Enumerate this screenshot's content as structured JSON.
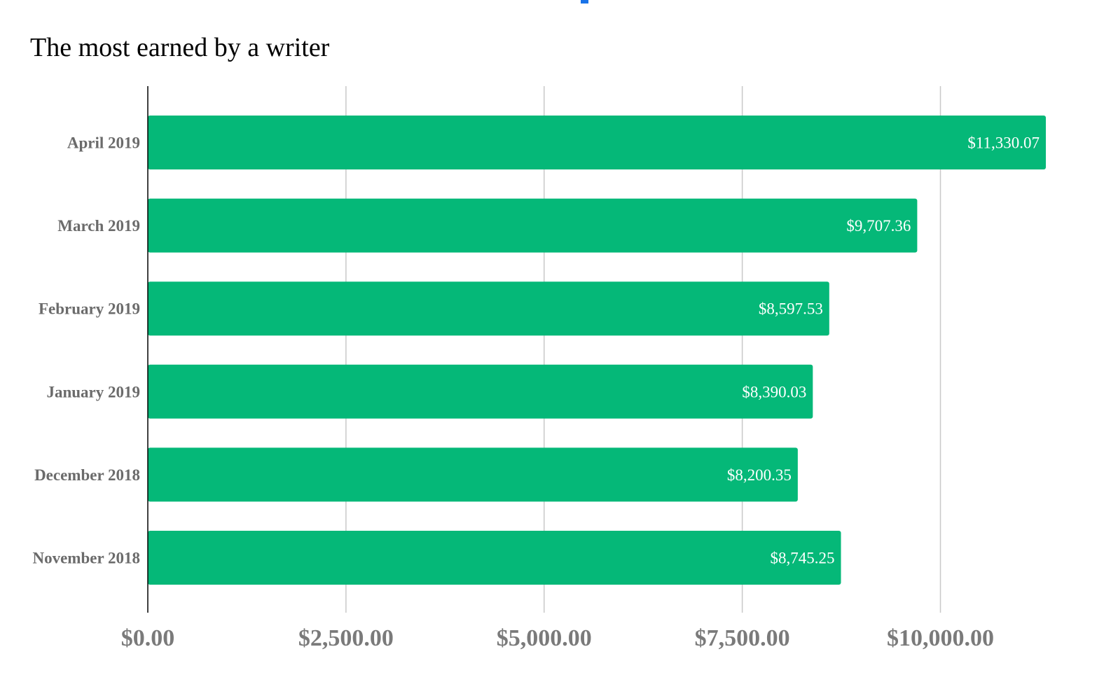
{
  "chart_data": {
    "type": "bar",
    "orientation": "horizontal",
    "title": "The most earned by a writer",
    "xlabel": "",
    "ylabel": "",
    "categories": [
      "April 2019",
      "March 2019",
      "February 2019",
      "January 2019",
      "December 2018",
      "November 2018"
    ],
    "values": [
      11330.07,
      9707.36,
      8597.53,
      8390.03,
      8200.35,
      8745.25
    ],
    "value_labels": [
      "$11,330.07",
      "$9,707.36",
      "$8,597.53",
      "$8,390.03",
      "$8,200.35",
      "$8,745.25"
    ],
    "xlim": [
      0,
      11330.07
    ],
    "ticks": [
      0,
      2500,
      5000,
      7500,
      10000
    ],
    "tick_labels": [
      "$0.00",
      "$2,500.00",
      "$5,000.00",
      "$7,500.00",
      "$10,000.00"
    ],
    "grid": true,
    "legend": "none",
    "colors": {
      "bar": "#05b878",
      "grid": "#c8c8c8",
      "tick_text": "#7a7a7a",
      "category_text": "#6b6b6b",
      "value_text": "#ffffff",
      "accent": "#1a73e8"
    }
  }
}
